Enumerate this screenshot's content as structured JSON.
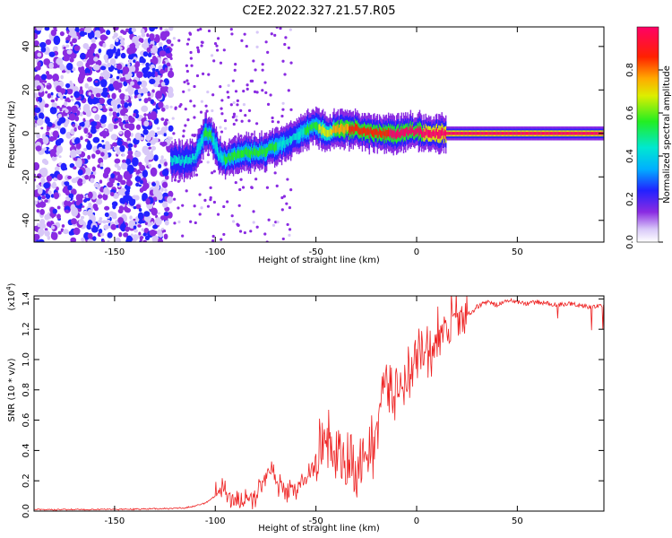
{
  "figure": {
    "title": "C2E2.2022.327.21.57.R05"
  },
  "chart_data": [
    {
      "type": "heatmap",
      "xlabel": "Height of straight line (km)",
      "ylabel": "Frequency (Hz)",
      "xlim": [
        -190,
        93
      ],
      "ylim": [
        -50,
        49
      ],
      "x_ticks": [
        -150,
        -100,
        -50,
        0,
        50
      ],
      "y_ticks": [
        -40,
        -20,
        0,
        20,
        40
      ],
      "grid": false,
      "colorbar": {
        "label": "Normalized spectral amplitude",
        "range": [
          0,
          1
        ],
        "ticks": [
          0.0,
          0.2,
          0.4,
          0.6,
          0.8
        ],
        "colormap": "rainbow (white-violet-blue-cyan-green-yellow-red-magenta)"
      },
      "ridge": {
        "x": [
          -122,
          -115,
          -110,
          -105,
          -102,
          -98,
          -95,
          -90,
          -85,
          -80,
          -75,
          -70,
          -65,
          -60,
          -55,
          -50,
          -45,
          -40,
          -35,
          -30,
          -25,
          -20,
          -15,
          -10,
          -5,
          0,
          5,
          10,
          15,
          93
        ],
        "y": [
          -12,
          -13,
          -11,
          0,
          -1,
          -10,
          -12,
          -10,
          -9,
          -9,
          -8,
          -6,
          -4,
          -1,
          1,
          4,
          0,
          2,
          2,
          2,
          1,
          0,
          0,
          0,
          1,
          1,
          0,
          0,
          0,
          0
        ],
        "amplitude": [
          0.35,
          0.4,
          0.4,
          0.45,
          0.45,
          0.4,
          0.45,
          0.45,
          0.45,
          0.5,
          0.5,
          0.45,
          0.4,
          0.4,
          0.45,
          0.55,
          0.6,
          0.75,
          0.75,
          0.8,
          0.8,
          0.85,
          0.85,
          0.9,
          0.9,
          0.9,
          0.95,
          0.95,
          1.0,
          1.0
        ]
      },
      "noise_region_x": [
        -190,
        -122
      ]
    },
    {
      "type": "line",
      "xlabel": "Height of straight line (km)",
      "ylabel": "SNR (10 * v/v)",
      "y_multiplier": "(x10",
      "y_multiplier_exp": "4",
      "y_multiplier_close": ")",
      "xlim": [
        -190,
        93
      ],
      "ylim": [
        0,
        1.42
      ],
      "x_ticks": [
        -150,
        -100,
        -50,
        0,
        50
      ],
      "y_ticks": [
        "0.0",
        "0.2",
        "0.4",
        "0.6",
        "0.8",
        "1.0",
        "1.2",
        "1.4"
      ],
      "grid": false,
      "series": [
        {
          "color": "#ee2222",
          "x": [
            -190,
            -160,
            -130,
            -115,
            -105,
            -100,
            -97,
            -95,
            -90,
            -85,
            -80,
            -75,
            -72,
            -70,
            -65,
            -60,
            -55,
            -50,
            -45,
            -42,
            -40,
            -35,
            -30,
            -25,
            -22,
            -20,
            -15,
            -12,
            -10,
            -5,
            0,
            5,
            10,
            15,
            20,
            25,
            28,
            30,
            35,
            40,
            45,
            50,
            55,
            60,
            65,
            70,
            75,
            80,
            85,
            93
          ],
          "y": [
            0.01,
            0.01,
            0.015,
            0.02,
            0.05,
            0.1,
            0.17,
            0.12,
            0.08,
            0.07,
            0.1,
            0.24,
            0.3,
            0.2,
            0.12,
            0.15,
            0.2,
            0.35,
            0.48,
            0.45,
            0.35,
            0.3,
            0.25,
            0.4,
            0.38,
            0.6,
            0.85,
            0.8,
            0.8,
            0.9,
            1.0,
            1.05,
            1.1,
            1.2,
            1.25,
            1.3,
            1.32,
            1.35,
            1.38,
            1.36,
            1.39,
            1.38,
            1.37,
            1.38,
            1.37,
            1.36,
            1.37,
            1.36,
            1.35,
            1.35
          ]
        }
      ]
    }
  ]
}
